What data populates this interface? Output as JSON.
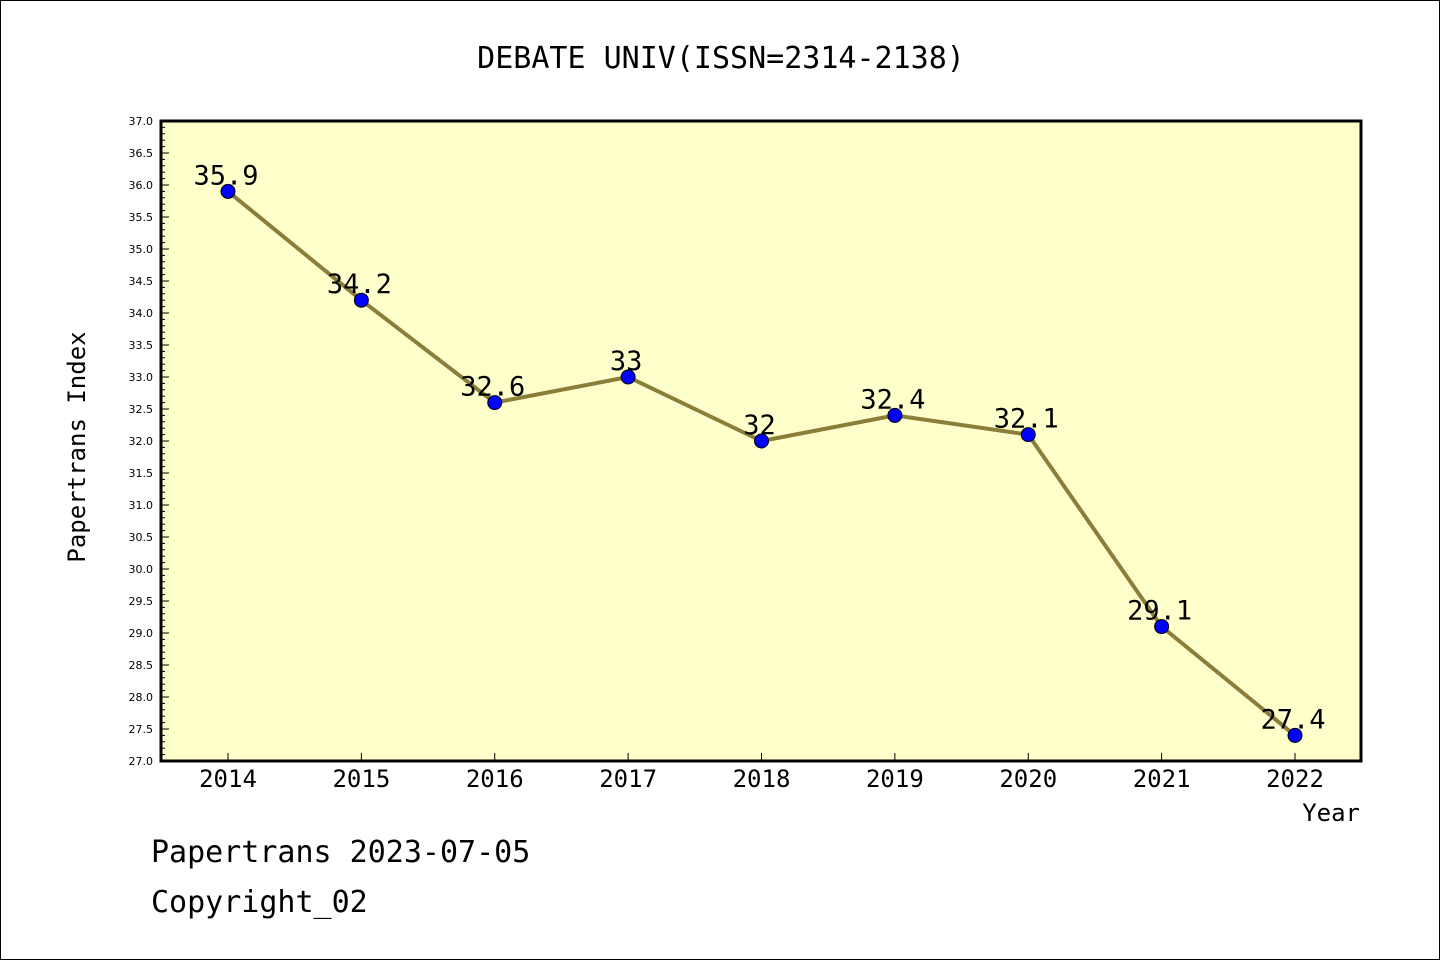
{
  "footer": {
    "line1": "Papertrans 2023-07-05",
    "line2": "Copyright_02"
  },
  "colors": {
    "plot_background": "#ffffcc",
    "line": "#8b7d3a",
    "marker": "#0000ff",
    "frame": "#000000"
  },
  "chart_data": {
    "type": "line",
    "title": "DEBATE UNIV(ISSN=2314-2138)",
    "xlabel": "Year",
    "ylabel": "Papertrans Index",
    "categories": [
      "2014",
      "2015",
      "2016",
      "2017",
      "2018",
      "2019",
      "2020",
      "2021",
      "2022"
    ],
    "series": [
      {
        "values": [
          35.9,
          34.2,
          32.6,
          33,
          32,
          32.4,
          32.1,
          29.1,
          27.4
        ],
        "point_labels": [
          "35.9",
          "34.2",
          "32.6",
          "33",
          "32",
          "32.4",
          "32.1",
          "29.1",
          "27.4"
        ]
      }
    ],
    "ylim": [
      27.0,
      37.0
    ],
    "yticks": [
      "27.0",
      "27.5",
      "28.0",
      "28.5",
      "29.0",
      "29.5",
      "30.0",
      "30.5",
      "31.0",
      "31.5",
      "32.0",
      "32.5",
      "33.0",
      "33.5",
      "34.0",
      "34.5",
      "35.0",
      "35.5",
      "36.0",
      "36.5",
      "37.0"
    ],
    "grid": false,
    "legend": "none"
  }
}
